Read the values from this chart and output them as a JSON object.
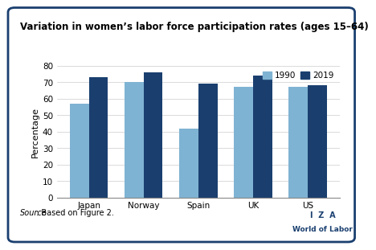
{
  "title": "Variation in women’s labor force participation rates (ages 15–64)",
  "categories": [
    "Japan",
    "Norway",
    "Spain",
    "UK",
    "US"
  ],
  "values_1990": [
    57,
    70,
    42,
    67,
    67
  ],
  "values_2019": [
    73,
    76,
    69,
    74,
    68
  ],
  "color_1990": "#7fb3d3",
  "color_2019": "#1a3f6f",
  "ylabel": "Percentage",
  "ylim": [
    0,
    80
  ],
  "yticks": [
    0,
    10,
    20,
    30,
    40,
    50,
    60,
    70,
    80
  ],
  "legend_labels": [
    "1990",
    "2019"
  ],
  "source_italic": "Source",
  "source_rest": ": Based on Figure 2.",
  "iza_text": "I  Z  A",
  "wol_text": "World of Labor",
  "iza_color": "#1a3f6f",
  "border_color": "#1a3f6f",
  "title_fontsize": 8.5,
  "axis_fontsize": 8.0,
  "tick_fontsize": 7.5
}
